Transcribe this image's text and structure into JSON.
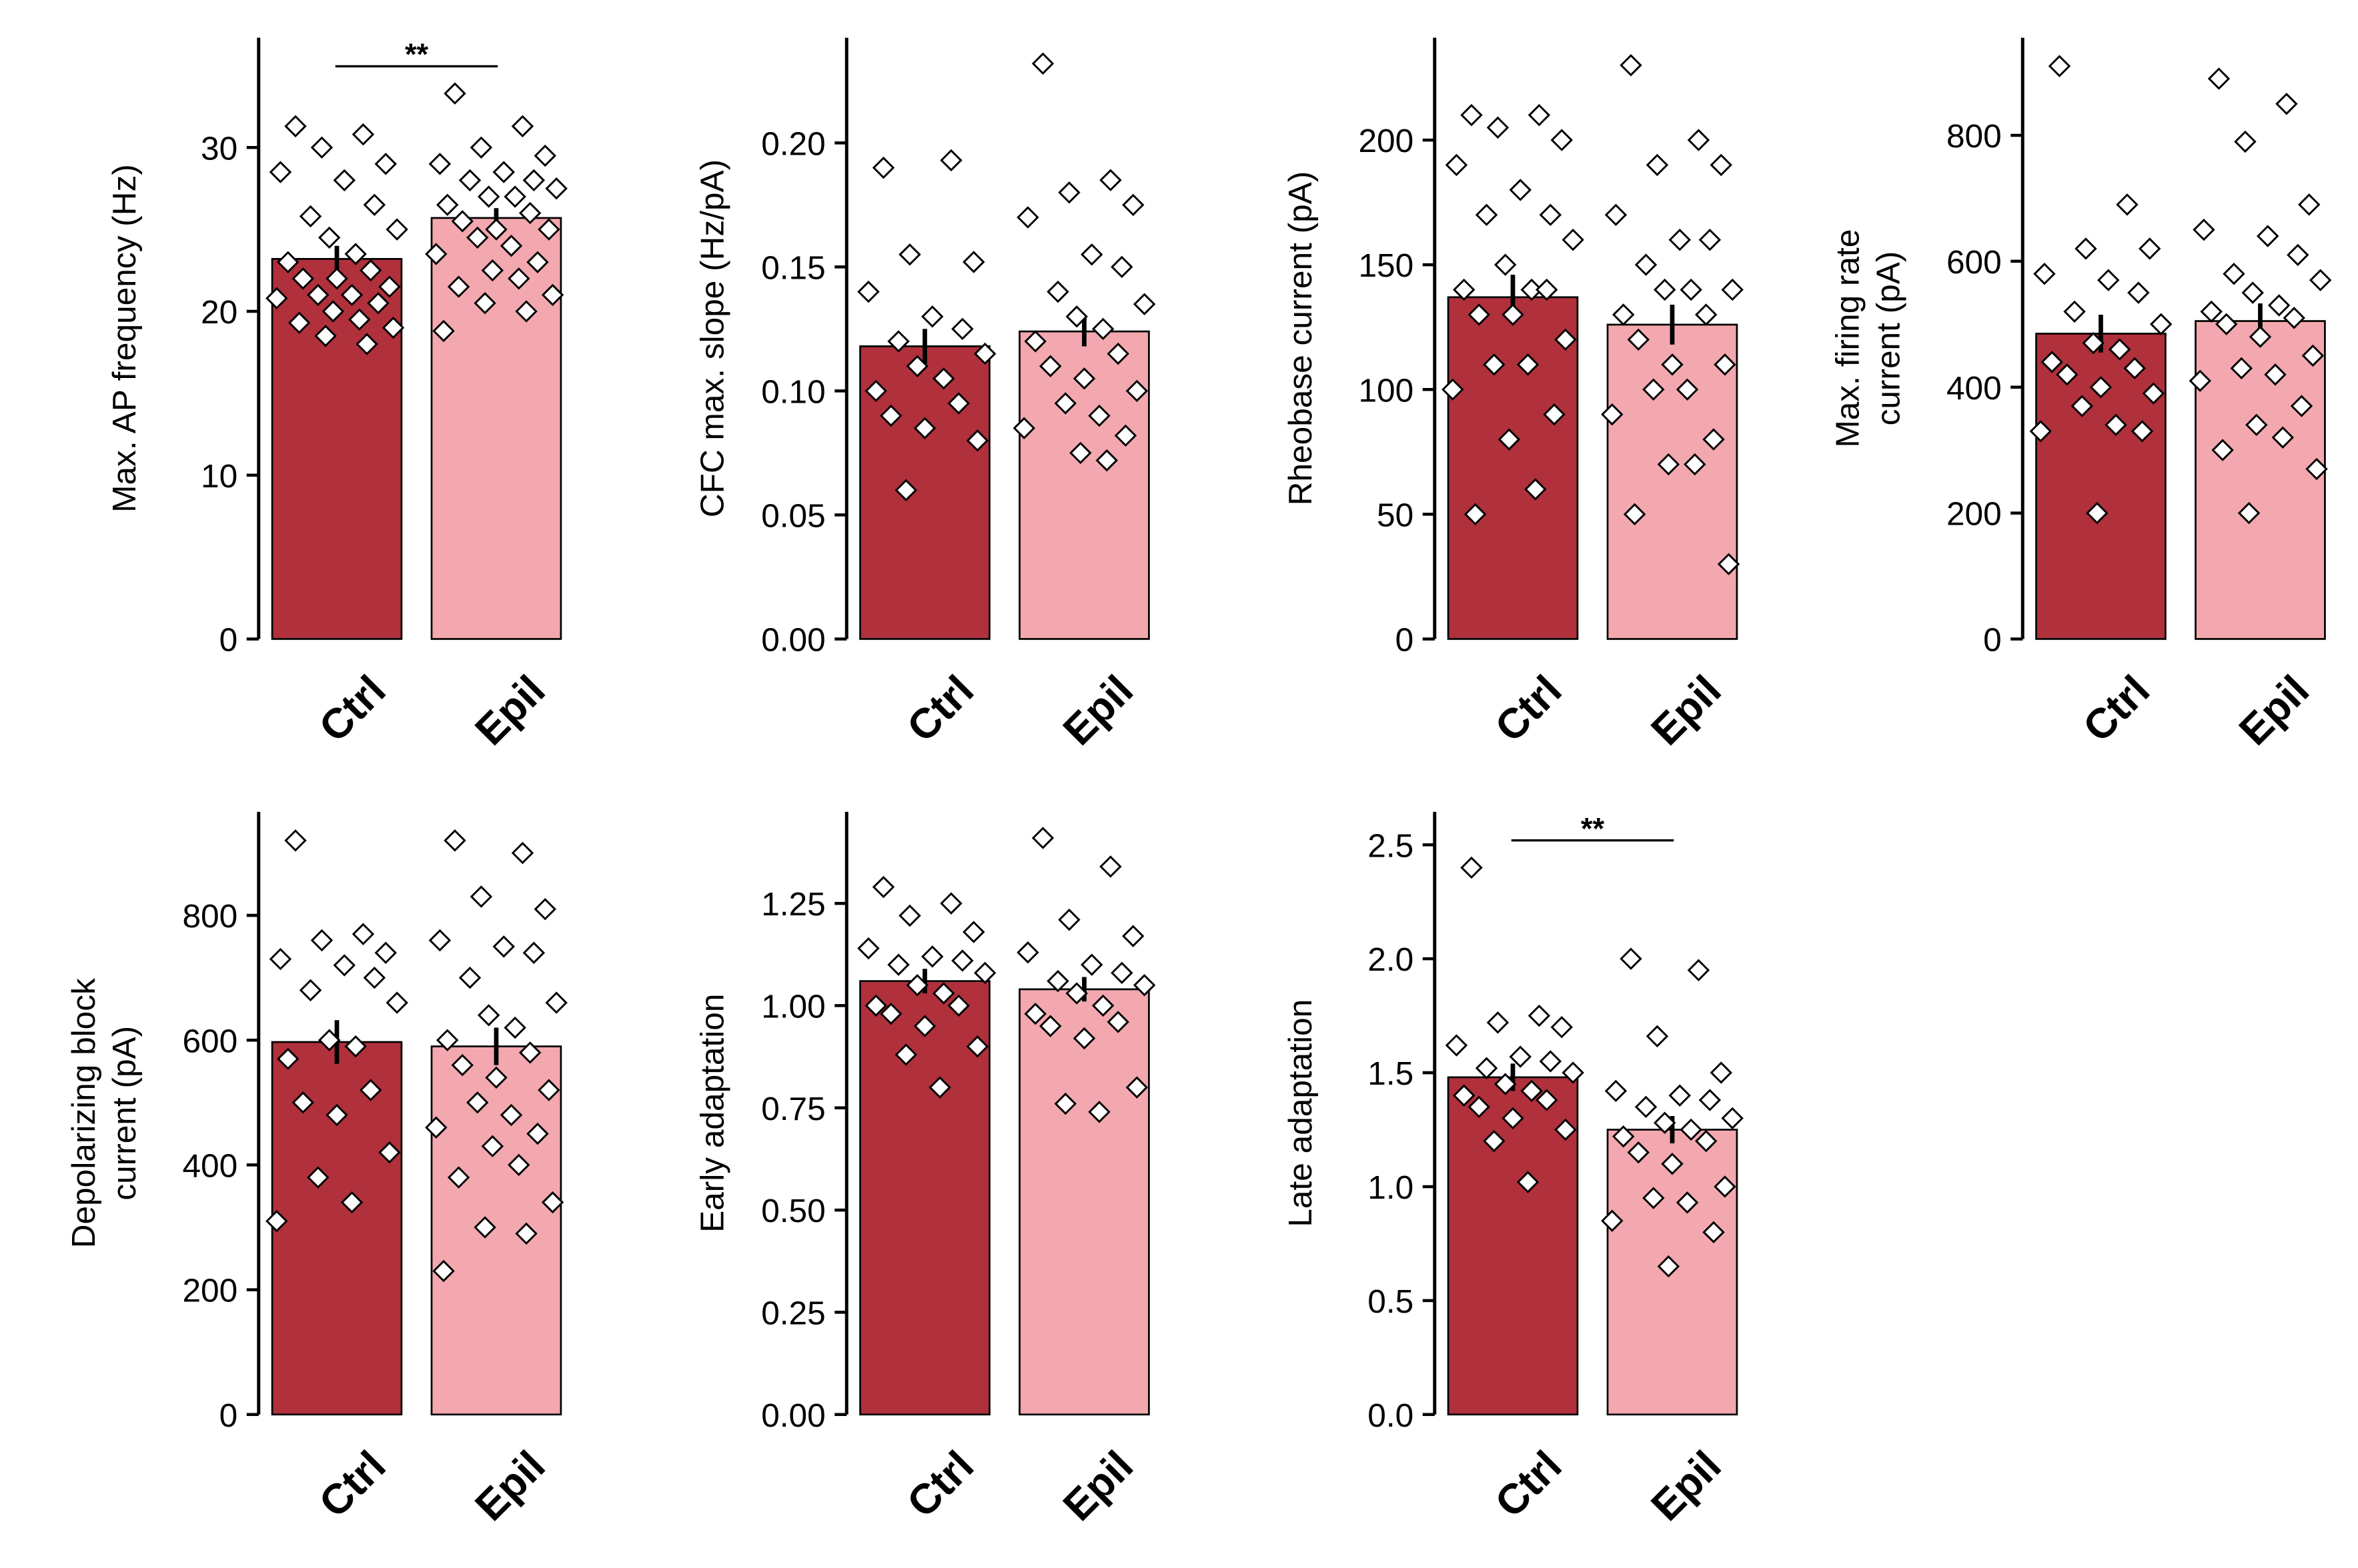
{
  "colors": {
    "Ctrl": "#b0303c",
    "Epil": "#f2a8ae",
    "axis": "#000000",
    "marker_fill": "#ffffff"
  },
  "chart_data": [
    {
      "type": "bar",
      "categories": [
        "Ctrl",
        "Epil"
      ],
      "ylabel": [
        "Max. AP frequency (Hz)"
      ],
      "ylim": [
        0,
        36.7
      ],
      "ticks": [
        0,
        10,
        20,
        30
      ],
      "tick_labels": [
        "0",
        "10",
        "20",
        "30"
      ],
      "values": [
        23.2,
        25.7
      ],
      "errors": [
        0.8,
        0.6
      ],
      "significance": "**",
      "points": [
        [
          31.3,
          30.8,
          30,
          29,
          28.5,
          28,
          26.5,
          25.8,
          25,
          24.5,
          23.5,
          23,
          22.5,
          22,
          22,
          21.5,
          21,
          21,
          20.8,
          20.5,
          20,
          19.5,
          19.3,
          19,
          18.5,
          18
        ],
        [
          33.3,
          31.3,
          30,
          29.5,
          29,
          28.5,
          28,
          28,
          27.5,
          27,
          27,
          26.5,
          26,
          25.5,
          25,
          25,
          24.5,
          24,
          23.5,
          23,
          22.5,
          22,
          21.5,
          21,
          20.5,
          20,
          18.8
        ]
      ]
    },
    {
      "type": "bar",
      "categories": [
        "Ctrl",
        "Epil"
      ],
      "ylabel": [
        "CFC max. slope (Hz/pA)"
      ],
      "ylim": [
        0,
        0.2424
      ],
      "ticks": [
        0,
        0.05,
        0.1,
        0.15,
        0.2
      ],
      "tick_labels": [
        "0.00",
        "0.05",
        "0.10",
        "0.15",
        "0.20"
      ],
      "values": [
        0.118,
        0.124
      ],
      "errors": [
        0.007,
        0.006
      ],
      "significance": "",
      "points": [
        [
          0.19,
          0.193,
          0.155,
          0.152,
          0.14,
          0.13,
          0.125,
          0.12,
          0.115,
          0.11,
          0.105,
          0.1,
          0.095,
          0.09,
          0.085,
          0.08,
          0.06
        ],
        [
          0.232,
          0.185,
          0.18,
          0.175,
          0.17,
          0.155,
          0.15,
          0.14,
          0.135,
          0.13,
          0.125,
          0.12,
          0.115,
          0.11,
          0.105,
          0.1,
          0.095,
          0.09,
          0.085,
          0.082,
          0.075,
          0.072
        ]
      ]
    },
    {
      "type": "bar",
      "categories": [
        "Ctrl",
        "Epil"
      ],
      "ylabel": [
        "Rheobase current (pA)"
      ],
      "ylim": [
        0,
        241
      ],
      "ticks": [
        0,
        50,
        100,
        150,
        200
      ],
      "tick_labels": [
        "0",
        "50",
        "100",
        "150",
        "200"
      ],
      "values": [
        137,
        126
      ],
      "errors": [
        9,
        8
      ],
      "significance": "",
      "points": [
        [
          210,
          210,
          205,
          200,
          190,
          180,
          170,
          170,
          160,
          150,
          140,
          140,
          140,
          130,
          130,
          120,
          110,
          110,
          100,
          90,
          80,
          60,
          50
        ],
        [
          230,
          200,
          190,
          190,
          170,
          160,
          160,
          150,
          140,
          140,
          140,
          130,
          130,
          120,
          110,
          110,
          100,
          100,
          90,
          80,
          70,
          70,
          50,
          30
        ]
      ]
    },
    {
      "type": "bar",
      "categories": [
        "Ctrl",
        "Epil"
      ],
      "ylabel": [
        "Max. firing rate",
        "current (pA)"
      ],
      "ylim": [
        0,
        955
      ],
      "ticks": [
        0,
        200,
        400,
        600,
        800
      ],
      "tick_labels": [
        "0",
        "200",
        "400",
        "600",
        "800"
      ],
      "values": [
        485,
        505
      ],
      "errors": [
        30,
        28
      ],
      "significance": "",
      "points": [
        [
          910,
          690,
          620,
          620,
          580,
          570,
          550,
          520,
          500,
          470,
          460,
          440,
          430,
          420,
          400,
          390,
          370,
          340,
          330,
          330,
          200
        ],
        [
          890,
          850,
          790,
          690,
          650,
          640,
          610,
          580,
          570,
          550,
          530,
          520,
          510,
          500,
          480,
          450,
          430,
          420,
          410,
          370,
          340,
          320,
          300,
          270,
          200
        ]
      ]
    },
    {
      "type": "bar",
      "categories": [
        "Ctrl",
        "Epil"
      ],
      "ylabel": [
        "Depolarizing block",
        "current (pA)"
      ],
      "ylim": [
        0,
        966
      ],
      "ticks": [
        0,
        200,
        400,
        600,
        800
      ],
      "tick_labels": [
        "0",
        "200",
        "400",
        "600",
        "800"
      ],
      "values": [
        597,
        590
      ],
      "errors": [
        35,
        30
      ],
      "significance": "",
      "points": [
        [
          920,
          770,
          760,
          740,
          730,
          720,
          700,
          680,
          660,
          600,
          590,
          570,
          520,
          500,
          480,
          420,
          380,
          340,
          310
        ],
        [
          920,
          900,
          830,
          810,
          760,
          750,
          740,
          700,
          660,
          640,
          620,
          600,
          580,
          560,
          540,
          520,
          500,
          480,
          460,
          450,
          430,
          400,
          380,
          340,
          300,
          290,
          230
        ]
      ]
    },
    {
      "type": "bar",
      "categories": [
        "Ctrl",
        "Epil"
      ],
      "ylabel": [
        "Early adaptation"
      ],
      "ylim": [
        0,
        1.474
      ],
      "ticks": [
        0,
        0.25,
        0.5,
        0.75,
        1.0,
        1.25
      ],
      "tick_labels": [
        "0.00",
        "0.25",
        "0.50",
        "0.75",
        "1.00",
        "1.25"
      ],
      "values": [
        1.06,
        1.04
      ],
      "errors": [
        0.03,
        0.03
      ],
      "significance": "",
      "points": [
        [
          1.29,
          1.25,
          1.22,
          1.18,
          1.14,
          1.12,
          1.11,
          1.1,
          1.08,
          1.05,
          1.03,
          1.0,
          1.0,
          0.98,
          0.95,
          0.9,
          0.88,
          0.8
        ],
        [
          1.41,
          1.34,
          1.21,
          1.17,
          1.13,
          1.1,
          1.08,
          1.06,
          1.05,
          1.03,
          1.0,
          0.98,
          0.96,
          0.95,
          0.92,
          0.8,
          0.76,
          0.74
        ]
      ]
    },
    {
      "type": "bar",
      "categories": [
        "Ctrl",
        "Epil"
      ],
      "ylabel": [
        "Late adaptation"
      ],
      "ylim": [
        0,
        2.645
      ],
      "ticks": [
        0,
        0.5,
        1.0,
        1.5,
        2.0,
        2.5
      ],
      "tick_labels": [
        "0.0",
        "0.5",
        "1.0",
        "1.5",
        "2.0",
        "2.5"
      ],
      "values": [
        1.48,
        1.25
      ],
      "errors": [
        0.06,
        0.06
      ],
      "significance": "**",
      "points": [
        [
          2.4,
          1.75,
          1.72,
          1.7,
          1.62,
          1.57,
          1.55,
          1.52,
          1.5,
          1.45,
          1.42,
          1.4,
          1.38,
          1.35,
          1.3,
          1.25,
          1.2,
          1.02
        ],
        [
          2.0,
          1.95,
          1.66,
          1.5,
          1.42,
          1.4,
          1.38,
          1.35,
          1.3,
          1.28,
          1.25,
          1.22,
          1.2,
          1.15,
          1.1,
          1.0,
          0.95,
          0.93,
          0.85,
          0.8,
          0.65
        ]
      ]
    }
  ]
}
